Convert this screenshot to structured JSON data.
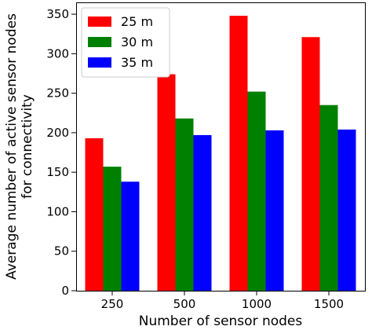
{
  "chart_data": {
    "type": "bar",
    "categories": [
      "250",
      "500",
      "1000",
      "1500"
    ],
    "series": [
      {
        "name": "25 m",
        "color": "#ff0000",
        "values": [
          193,
          274,
          348,
          321
        ]
      },
      {
        "name": "30 m",
        "color": "#008000",
        "values": [
          157,
          218,
          252,
          235
        ]
      },
      {
        "name": "35 m",
        "color": "#0000ff",
        "values": [
          138,
          197,
          203,
          204
        ]
      }
    ],
    "xlabel": "Number of sensor nodes",
    "ylabel_lines": [
      "Average number of active sensor nodes",
      "for connectivity"
    ],
    "ylim": [
      0,
      365
    ],
    "yticks": [
      0,
      50,
      100,
      150,
      200,
      250,
      300,
      350
    ],
    "legend_position": "top-left",
    "grid": false
  }
}
